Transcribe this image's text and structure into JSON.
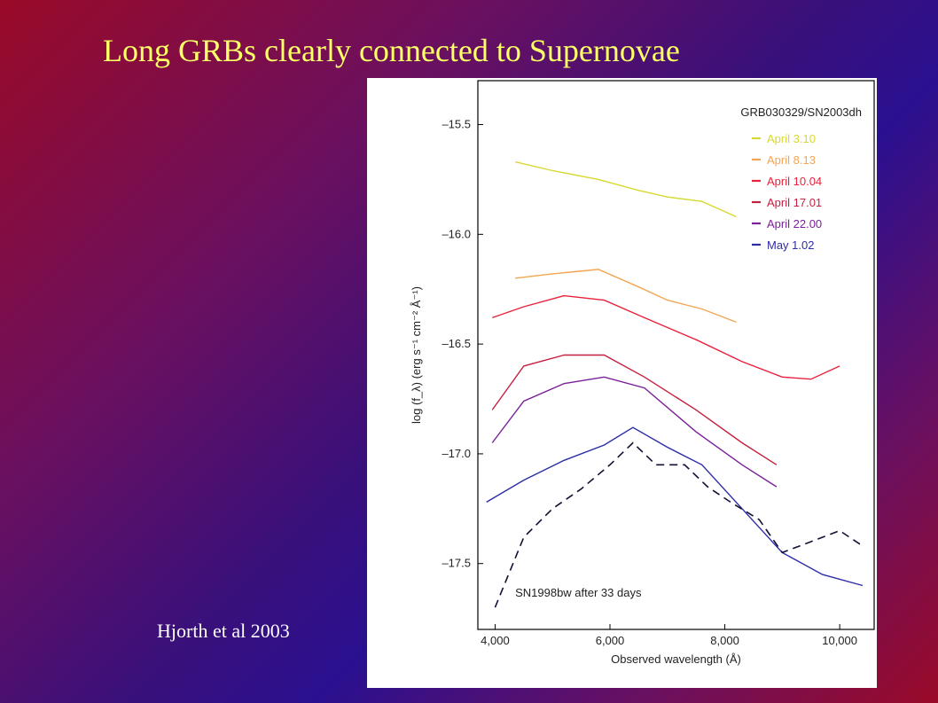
{
  "slide": {
    "title": "Long GRBs clearly connected to Supernovae",
    "credit": "Hjorth et al 2003"
  },
  "chart_data": {
    "type": "line",
    "title": "GRB030329/SN2003dh",
    "xlabel": "Observed wavelength (Å)",
    "ylabel": "log (f_λ) (erg s⁻¹ cm⁻² Å⁻¹)",
    "xlim": [
      3700,
      10600
    ],
    "ylim": [
      -17.8,
      -15.3
    ],
    "xticks": [
      4000,
      6000,
      8000,
      10000
    ],
    "xtick_labels": [
      "4,000",
      "6,000",
      "8,000",
      "10,000"
    ],
    "yticks": [
      -15.5,
      -16.0,
      -16.5,
      -17.0,
      -17.5
    ],
    "ytick_labels": [
      "–15.5",
      "–16.0",
      "–16.5",
      "–17.0",
      "–17.5"
    ],
    "legend_position": "top-right",
    "annotation": "SN1998bw after 33 days",
    "series": [
      {
        "name": "April 3.10",
        "color": "#d8d832",
        "x": [
          4350,
          5000,
          5800,
          6500,
          7000,
          7600,
          8200
        ],
        "y": [
          -15.67,
          -15.71,
          -15.75,
          -15.8,
          -15.83,
          -15.85,
          -15.92
        ]
      },
      {
        "name": "April 8.13",
        "color": "#f4a552",
        "x": [
          4350,
          5000,
          5800,
          6500,
          7000,
          7600,
          8200
        ],
        "y": [
          -16.2,
          -16.18,
          -16.16,
          -16.24,
          -16.3,
          -16.34,
          -16.4
        ]
      },
      {
        "name": "April 10.04",
        "color": "#e8223c",
        "x": [
          3950,
          4500,
          5200,
          5900,
          6600,
          7500,
          8300,
          9000,
          9500,
          10000
        ],
        "y": [
          -16.38,
          -16.33,
          -16.28,
          -16.3,
          -16.38,
          -16.48,
          -16.58,
          -16.65,
          -16.66,
          -16.6
        ]
      },
      {
        "name": "April 17.01",
        "color": "#c42040",
        "x": [
          3950,
          4500,
          5200,
          5900,
          6600,
          7500,
          8300,
          8900
        ],
        "y": [
          -16.8,
          -16.6,
          -16.55,
          -16.55,
          -16.65,
          -16.8,
          -16.95,
          -17.05
        ]
      },
      {
        "name": "April 22.00",
        "color": "#7a2098",
        "x": [
          3950,
          4500,
          5200,
          5900,
          6600,
          7500,
          8300,
          8900
        ],
        "y": [
          -16.95,
          -16.76,
          -16.68,
          -16.65,
          -16.7,
          -16.9,
          -17.05,
          -17.15
        ]
      },
      {
        "name": "May 1.02",
        "color": "#2c2ca8",
        "x": [
          3850,
          4500,
          5200,
          5900,
          6400,
          7000,
          7600,
          8300,
          9000,
          9700,
          10400
        ],
        "y": [
          -17.22,
          -17.12,
          -17.03,
          -16.96,
          -16.88,
          -16.97,
          -17.05,
          -17.25,
          -17.45,
          -17.55,
          -17.6
        ]
      },
      {
        "name": "SN1998bw after 33 days",
        "color": "#111133",
        "dashed": true,
        "x": [
          4000,
          4500,
          5000,
          5500,
          6000,
          6400,
          6800,
          7300,
          7700,
          8100,
          8600,
          9000,
          9500,
          10000,
          10400
        ],
        "y": [
          -17.7,
          -17.38,
          -17.25,
          -17.16,
          -17.05,
          -16.95,
          -17.05,
          -17.05,
          -17.15,
          -17.22,
          -17.3,
          -17.45,
          -17.4,
          -17.35,
          -17.42
        ]
      }
    ]
  }
}
